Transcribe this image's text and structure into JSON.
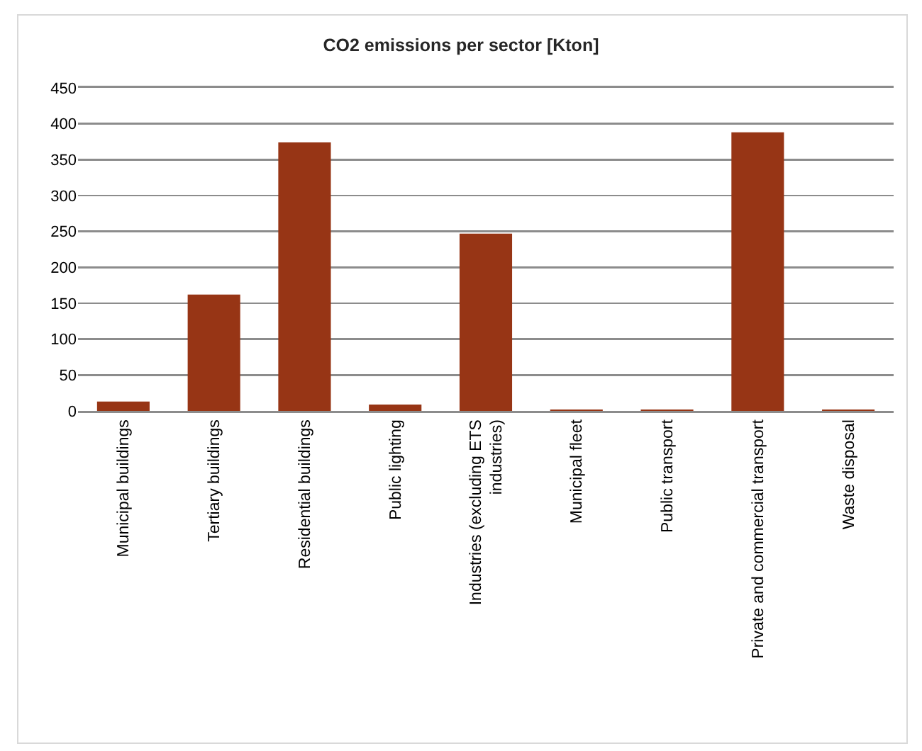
{
  "chart_data": {
    "type": "bar",
    "title": "CO2 emissions per sector [Kton]",
    "categories": [
      "Municipal buildings",
      "Tertiary buildings",
      "Residential buildings",
      "Public lighting",
      "Industries (excluding ETS industries)",
      "Municipal fleet",
      "Public transport",
      "Private and commercial transport",
      "Waste disposal"
    ],
    "values": [
      13,
      162,
      374,
      9,
      247,
      2,
      2,
      388,
      2
    ],
    "color": "#973515",
    "ylim": [
      0,
      450
    ],
    "yticks": [
      0,
      50,
      100,
      150,
      200,
      250,
      300,
      350,
      400,
      450
    ],
    "grid": "y"
  }
}
